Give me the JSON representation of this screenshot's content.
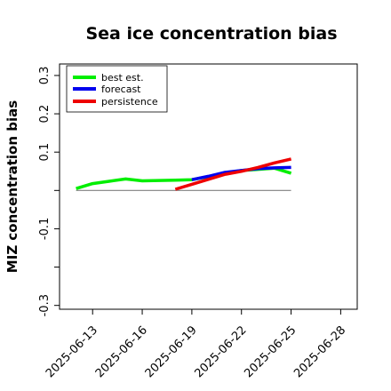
{
  "chart_data": {
    "type": "line",
    "title": "Sea ice concentration bias",
    "xlabel": "",
    "ylabel": "MIZ concentration bias",
    "ylim": [
      -0.31,
      0.33
    ],
    "xlim": [
      "2025-06-11",
      "2025-06-29"
    ],
    "y_ticks": [
      {
        "value": -0.3,
        "label": "-0.3"
      },
      {
        "value": -0.2,
        "label": ""
      },
      {
        "value": -0.1,
        "label": "-0.1"
      },
      {
        "value": 0.0,
        "label": ""
      },
      {
        "value": 0.1,
        "label": "0.1"
      },
      {
        "value": 0.2,
        "label": "0.2"
      },
      {
        "value": 0.3,
        "label": "0.3"
      }
    ],
    "x_ticks": [
      {
        "date": "2025-06-13",
        "label": "2025-06-13",
        "color": "#000000"
      },
      {
        "date": "2025-06-16",
        "label": "2025-06-16",
        "color": "#000000"
      },
      {
        "date": "2025-06-19",
        "label": "2025-06-19",
        "color": "#2e8b2e"
      },
      {
        "date": "2025-06-22",
        "label": "2025-06-22",
        "color": "#000000"
      },
      {
        "date": "2025-06-25",
        "label": "2025-06-25",
        "color": "#000000"
      },
      {
        "date": "2025-06-28",
        "label": "2025-06-28",
        "color": "#000000"
      }
    ],
    "zero_line": {
      "from": "2025-06-12",
      "to": "2025-06-25",
      "value": 0.0,
      "color": "#808080"
    },
    "legend_position": "upper left",
    "series": [
      {
        "name": "best est.",
        "color": "#00ee00",
        "x": [
          "2025-06-12",
          "2025-06-13",
          "2025-06-14",
          "2025-06-15",
          "2025-06-16",
          "2025-06-17",
          "2025-06-18",
          "2025-06-19",
          "2025-06-20",
          "2025-06-21",
          "2025-06-22",
          "2025-06-23",
          "2025-06-24",
          "2025-06-25"
        ],
        "y": [
          0.005,
          0.018,
          0.024,
          0.03,
          0.025,
          0.026,
          0.027,
          0.028,
          0.036,
          0.045,
          0.052,
          0.055,
          0.058,
          0.045
        ]
      },
      {
        "name": "forecast",
        "color": "#0000ee",
        "x": [
          "2025-06-19",
          "2025-06-20",
          "2025-06-21",
          "2025-06-22",
          "2025-06-23",
          "2025-06-24",
          "2025-06-25"
        ],
        "y": [
          0.028,
          0.037,
          0.047,
          0.052,
          0.057,
          0.059,
          0.06
        ]
      },
      {
        "name": "persistence",
        "color": "#ee0000",
        "x": [
          "2025-06-18",
          "2025-06-19",
          "2025-06-20",
          "2025-06-21",
          "2025-06-22",
          "2025-06-23",
          "2025-06-24",
          "2025-06-25"
        ],
        "y": [
          0.003,
          0.016,
          0.029,
          0.042,
          0.05,
          0.06,
          0.072,
          0.082
        ]
      }
    ]
  }
}
